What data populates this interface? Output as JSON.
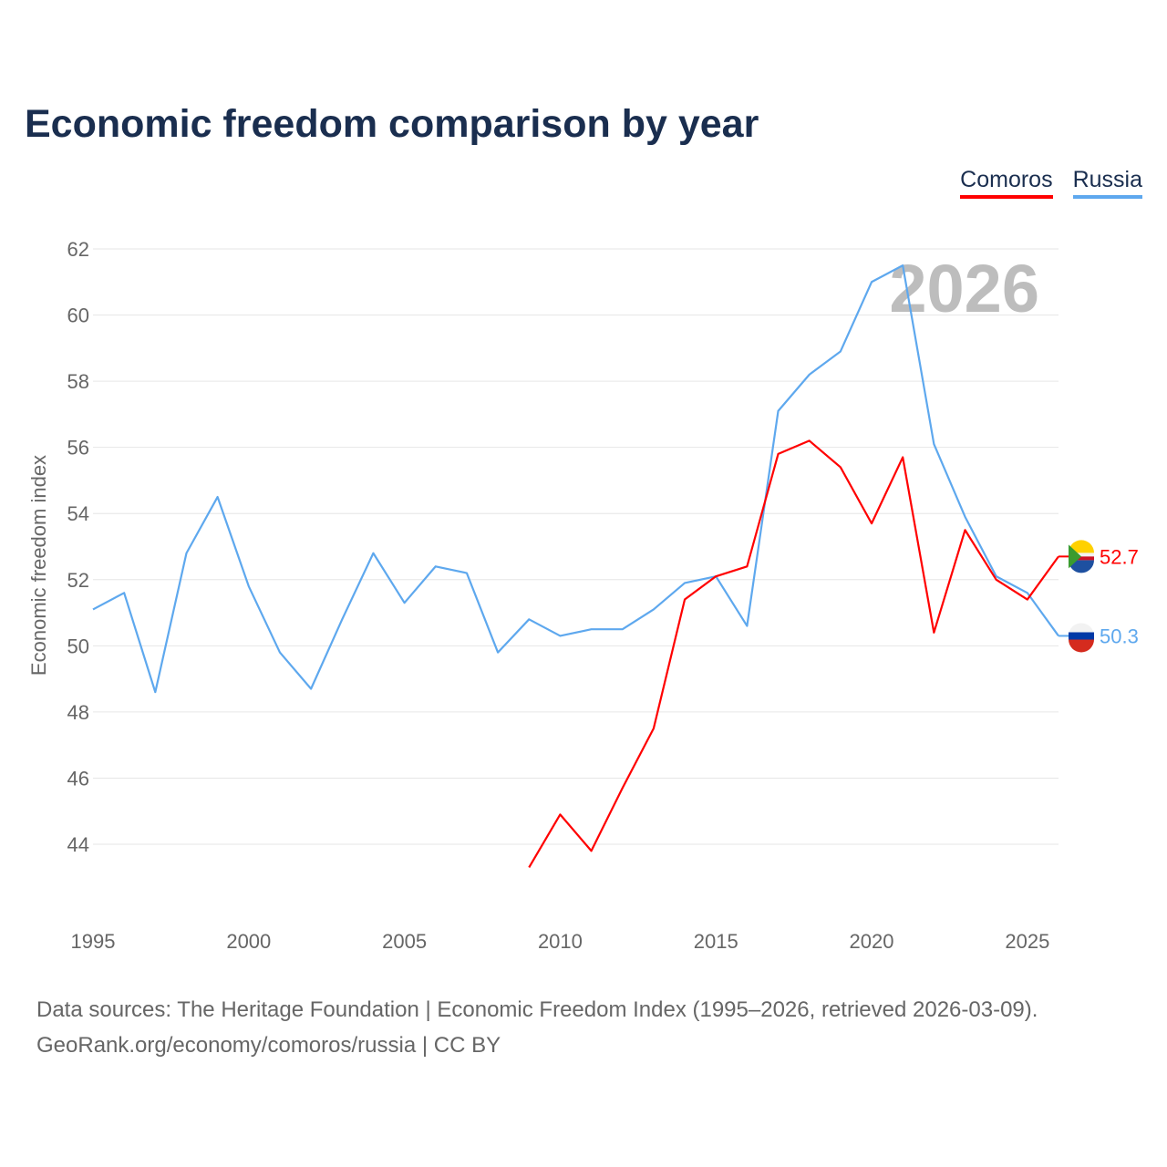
{
  "chart_data": {
    "type": "line",
    "title": "Economic freedom comparison by year",
    "ylabel": "Economic freedom index",
    "xlabel": "",
    "xlim": [
      1995,
      2026
    ],
    "ylim": [
      42.5,
      63
    ],
    "xticks": [
      1995,
      2000,
      2005,
      2010,
      2015,
      2020,
      2025
    ],
    "yticks": [
      44,
      46,
      48,
      50,
      52,
      54,
      56,
      58,
      60,
      62
    ],
    "grid": true,
    "legend_placement": "top-right",
    "year_watermark": "2026",
    "series": [
      {
        "name": "Comoros",
        "color": "#ff0000",
        "end_label": "52.7",
        "x": [
          2009,
          2010,
          2011,
          2012,
          2013,
          2014,
          2015,
          2016,
          2017,
          2018,
          2019,
          2020,
          2021,
          2022,
          2023,
          2024,
          2025,
          2026
        ],
        "values": [
          43.3,
          44.9,
          43.8,
          45.7,
          47.5,
          51.4,
          52.1,
          52.4,
          55.8,
          56.2,
          55.4,
          53.7,
          55.7,
          50.4,
          53.5,
          52.0,
          51.4,
          52.7
        ]
      },
      {
        "name": "Russia",
        "color": "#5ea8ee",
        "end_label": "50.3",
        "x": [
          1995,
          1996,
          1997,
          1998,
          1999,
          2000,
          2001,
          2002,
          2003,
          2004,
          2005,
          2006,
          2007,
          2008,
          2009,
          2010,
          2011,
          2012,
          2013,
          2014,
          2015,
          2016,
          2017,
          2018,
          2019,
          2020,
          2021,
          2022,
          2023,
          2024,
          2025,
          2026
        ],
        "values": [
          51.1,
          51.6,
          48.6,
          52.8,
          54.5,
          51.8,
          49.8,
          48.7,
          50.8,
          52.8,
          51.3,
          52.4,
          52.2,
          49.8,
          50.8,
          50.3,
          50.5,
          50.5,
          51.1,
          51.9,
          52.1,
          50.6,
          57.1,
          58.2,
          58.9,
          61.0,
          61.5,
          56.1,
          53.9,
          52.1,
          51.6,
          50.3
        ]
      }
    ]
  },
  "footer": {
    "line1": "Data sources: The Heritage Foundation | Economic Freedom Index (1995–2026, retrieved 2026-03-09).",
    "line2": "GeoRank.org/economy/comoros/russia | CC BY"
  }
}
